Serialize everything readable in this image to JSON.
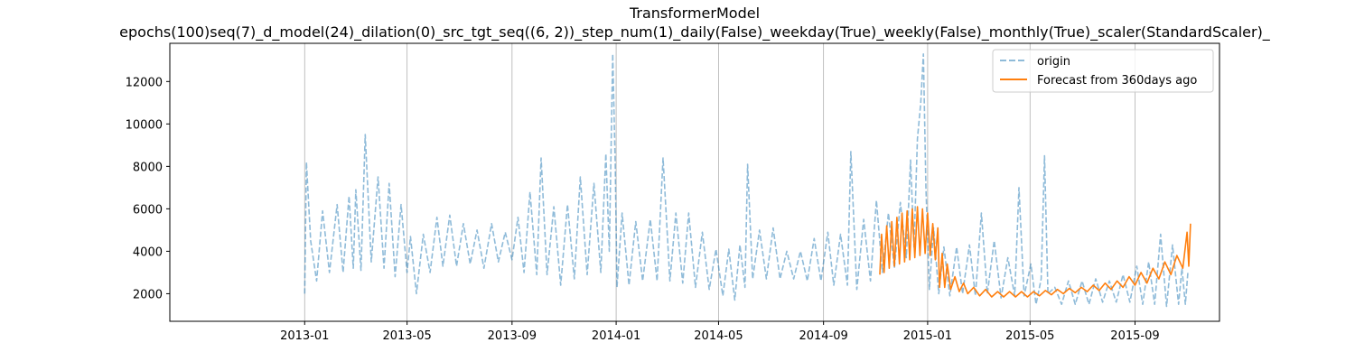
{
  "chart_data": {
    "type": "line",
    "title": "TransformerModel",
    "subtitle": "epochs(100)seq(7)_d_model(24)_dilation(0)_src_tgt_seq((6, 2))_step_num(1)_daily(False)_weekday(True)_weekly(False)_monthly(True)_scaler(StandardScaler)_",
    "xlabel": "",
    "ylabel": "",
    "x_range": [
      "2012-07-27",
      "2015-12-09"
    ],
    "ylim": [
      700,
      13800
    ],
    "x_ticks": [
      "2013-01",
      "2013-05",
      "2013-09",
      "2014-01",
      "2014-05",
      "2014-09",
      "2015-01",
      "2015-05",
      "2015-09"
    ],
    "y_ticks": [
      2000,
      4000,
      6000,
      8000,
      10000,
      12000
    ],
    "grid": "vertical lines at x ticks",
    "legend_position": "upper right",
    "series": [
      {
        "name": "origin",
        "style": "dashed",
        "color": "#1f77b4",
        "alpha": 0.5,
        "points": [
          [
            "2013-01-01",
            2000
          ],
          [
            "2013-01-03",
            8200
          ],
          [
            "2013-01-08",
            4500
          ],
          [
            "2013-01-15",
            2600
          ],
          [
            "2013-01-22",
            5900
          ],
          [
            "2013-01-30",
            3000
          ],
          [
            "2013-02-08",
            6200
          ],
          [
            "2013-02-15",
            3000
          ],
          [
            "2013-02-22",
            6600
          ],
          [
            "2013-02-27",
            3200
          ],
          [
            "2013-03-02",
            6900
          ],
          [
            "2013-03-08",
            3100
          ],
          [
            "2013-03-13",
            9500
          ],
          [
            "2013-03-20",
            3500
          ],
          [
            "2013-03-28",
            7500
          ],
          [
            "2013-04-04",
            3200
          ],
          [
            "2013-04-10",
            7200
          ],
          [
            "2013-04-17",
            2800
          ],
          [
            "2013-04-24",
            6200
          ],
          [
            "2013-05-01",
            3000
          ],
          [
            "2013-05-05",
            4700
          ],
          [
            "2013-05-12",
            2000
          ],
          [
            "2013-05-20",
            4800
          ],
          [
            "2013-05-28",
            3000
          ],
          [
            "2013-06-05",
            5600
          ],
          [
            "2013-06-12",
            3300
          ],
          [
            "2013-06-20",
            5700
          ],
          [
            "2013-06-28",
            3300
          ],
          [
            "2013-07-06",
            5300
          ],
          [
            "2013-07-14",
            3400
          ],
          [
            "2013-07-22",
            5000
          ],
          [
            "2013-07-30",
            3200
          ],
          [
            "2013-08-08",
            5300
          ],
          [
            "2013-08-16",
            3500
          ],
          [
            "2013-08-24",
            4900
          ],
          [
            "2013-09-01",
            3600
          ],
          [
            "2013-09-08",
            5600
          ],
          [
            "2013-09-15",
            3000
          ],
          [
            "2013-09-22",
            6800
          ],
          [
            "2013-09-30",
            2900
          ],
          [
            "2013-10-05",
            8400
          ],
          [
            "2013-10-12",
            2900
          ],
          [
            "2013-10-20",
            6100
          ],
          [
            "2013-10-28",
            2400
          ],
          [
            "2013-11-05",
            6200
          ],
          [
            "2013-11-13",
            2700
          ],
          [
            "2013-11-20",
            7500
          ],
          [
            "2013-11-28",
            2900
          ],
          [
            "2013-12-06",
            7200
          ],
          [
            "2013-12-14",
            3000
          ],
          [
            "2013-12-20",
            8600
          ],
          [
            "2013-12-24",
            4000
          ],
          [
            "2013-12-28",
            13300
          ],
          [
            "2013-12-31",
            8000
          ],
          [
            "2014-01-02",
            2300
          ],
          [
            "2014-01-08",
            5800
          ],
          [
            "2014-01-16",
            2400
          ],
          [
            "2014-01-24",
            5400
          ],
          [
            "2014-02-01",
            2600
          ],
          [
            "2014-02-10",
            5500
          ],
          [
            "2014-02-18",
            2600
          ],
          [
            "2014-02-25",
            8400
          ],
          [
            "2014-03-05",
            2600
          ],
          [
            "2014-03-12",
            5800
          ],
          [
            "2014-03-20",
            2500
          ],
          [
            "2014-03-27",
            5800
          ],
          [
            "2014-04-04",
            2300
          ],
          [
            "2014-04-12",
            4900
          ],
          [
            "2014-04-20",
            2200
          ],
          [
            "2014-04-28",
            4100
          ],
          [
            "2014-05-06",
            1900
          ],
          [
            "2014-05-13",
            4100
          ],
          [
            "2014-05-20",
            1700
          ],
          [
            "2014-05-26",
            4300
          ],
          [
            "2014-06-01",
            2300
          ],
          [
            "2014-06-04",
            8100
          ],
          [
            "2014-06-10",
            2700
          ],
          [
            "2014-06-18",
            5000
          ],
          [
            "2014-06-26",
            2700
          ],
          [
            "2014-07-04",
            5100
          ],
          [
            "2014-07-12",
            2700
          ],
          [
            "2014-07-20",
            4000
          ],
          [
            "2014-07-28",
            2700
          ],
          [
            "2014-08-05",
            4000
          ],
          [
            "2014-08-13",
            2600
          ],
          [
            "2014-08-21",
            4600
          ],
          [
            "2014-08-29",
            2600
          ],
          [
            "2014-09-06",
            4900
          ],
          [
            "2014-09-13",
            2400
          ],
          [
            "2014-09-21",
            4800
          ],
          [
            "2014-09-29",
            2400
          ],
          [
            "2014-10-03",
            8700
          ],
          [
            "2014-10-10",
            2200
          ],
          [
            "2014-10-18",
            5500
          ],
          [
            "2014-10-26",
            2600
          ],
          [
            "2014-11-02",
            6400
          ],
          [
            "2014-11-09",
            3000
          ],
          [
            "2014-11-16",
            5800
          ],
          [
            "2014-11-23",
            3200
          ],
          [
            "2014-11-30",
            6300
          ],
          [
            "2014-12-07",
            3700
          ],
          [
            "2014-12-12",
            8300
          ],
          [
            "2014-12-16",
            4200
          ],
          [
            "2014-12-20",
            9300
          ],
          [
            "2014-12-24",
            11000
          ],
          [
            "2014-12-27",
            13300
          ],
          [
            "2014-12-30",
            7000
          ],
          [
            "2015-01-03",
            2200
          ],
          [
            "2015-01-08",
            5100
          ],
          [
            "2015-01-14",
            2000
          ],
          [
            "2015-01-20",
            4200
          ],
          [
            "2015-01-27",
            1900
          ],
          [
            "2015-02-04",
            4200
          ],
          [
            "2015-02-11",
            2000
          ],
          [
            "2015-02-19",
            4300
          ],
          [
            "2015-02-26",
            1900
          ],
          [
            "2015-03-05",
            5800
          ],
          [
            "2015-03-12",
            2000
          ],
          [
            "2015-03-20",
            4500
          ],
          [
            "2015-03-28",
            1800
          ],
          [
            "2015-04-05",
            3700
          ],
          [
            "2015-04-13",
            1900
          ],
          [
            "2015-04-18",
            7000
          ],
          [
            "2015-04-24",
            1900
          ],
          [
            "2015-05-02",
            3400
          ],
          [
            "2015-05-08",
            1500
          ],
          [
            "2015-05-14",
            2700
          ],
          [
            "2015-05-18",
            8500
          ],
          [
            "2015-05-22",
            2000
          ],
          [
            "2015-05-30",
            2300
          ],
          [
            "2015-06-07",
            1500
          ],
          [
            "2015-06-15",
            2600
          ],
          [
            "2015-06-23",
            1500
          ],
          [
            "2015-07-01",
            2600
          ],
          [
            "2015-07-09",
            1500
          ],
          [
            "2015-07-17",
            2700
          ],
          [
            "2015-07-25",
            1600
          ],
          [
            "2015-08-02",
            2600
          ],
          [
            "2015-08-10",
            1600
          ],
          [
            "2015-08-18",
            2900
          ],
          [
            "2015-08-26",
            1600
          ],
          [
            "2015-09-03",
            3300
          ],
          [
            "2015-09-10",
            1500
          ],
          [
            "2015-09-17",
            3500
          ],
          [
            "2015-09-24",
            1500
          ],
          [
            "2015-10-01",
            4800
          ],
          [
            "2015-10-08",
            1400
          ],
          [
            "2015-10-15",
            4300
          ],
          [
            "2015-10-22",
            1500
          ],
          [
            "2015-10-26",
            3200
          ],
          [
            "2015-10-30",
            1500
          ],
          [
            "2015-11-02",
            3000
          ]
        ]
      },
      {
        "name": "Forecast from 360days ago",
        "style": "solid",
        "color": "#ff7f0e",
        "points": [
          [
            "2014-11-06",
            2900
          ],
          [
            "2014-11-08",
            4800
          ],
          [
            "2014-11-11",
            3000
          ],
          [
            "2014-11-14",
            5200
          ],
          [
            "2014-11-17",
            3200
          ],
          [
            "2014-11-20",
            5400
          ],
          [
            "2014-11-23",
            3300
          ],
          [
            "2014-11-26",
            5600
          ],
          [
            "2014-11-29",
            3400
          ],
          [
            "2014-12-02",
            5800
          ],
          [
            "2014-12-05",
            3500
          ],
          [
            "2014-12-08",
            5900
          ],
          [
            "2014-12-11",
            3600
          ],
          [
            "2014-12-14",
            6000
          ],
          [
            "2014-12-17",
            3700
          ],
          [
            "2014-12-20",
            6100
          ],
          [
            "2014-12-23",
            3800
          ],
          [
            "2014-12-26",
            6000
          ],
          [
            "2014-12-29",
            3900
          ],
          [
            "2015-01-01",
            5800
          ],
          [
            "2015-01-04",
            3800
          ],
          [
            "2015-01-07",
            5300
          ],
          [
            "2015-01-10",
            3600
          ],
          [
            "2015-01-13",
            5100
          ],
          [
            "2015-01-15",
            2300
          ],
          [
            "2015-01-18",
            3900
          ],
          [
            "2015-01-21",
            2300
          ],
          [
            "2015-01-24",
            3400
          ],
          [
            "2015-01-28",
            2200
          ],
          [
            "2015-02-02",
            2800
          ],
          [
            "2015-02-07",
            2100
          ],
          [
            "2015-02-12",
            2500
          ],
          [
            "2015-02-17",
            2000
          ],
          [
            "2015-02-24",
            2300
          ],
          [
            "2015-03-03",
            1900
          ],
          [
            "2015-03-10",
            2200
          ],
          [
            "2015-03-17",
            1850
          ],
          [
            "2015-03-24",
            2100
          ],
          [
            "2015-03-31",
            1850
          ],
          [
            "2015-04-07",
            2100
          ],
          [
            "2015-04-14",
            1850
          ],
          [
            "2015-04-21",
            2100
          ],
          [
            "2015-04-28",
            1850
          ],
          [
            "2015-05-05",
            2100
          ],
          [
            "2015-05-12",
            1900
          ],
          [
            "2015-05-19",
            2150
          ],
          [
            "2015-05-26",
            1950
          ],
          [
            "2015-06-02",
            2200
          ],
          [
            "2015-06-09",
            2000
          ],
          [
            "2015-06-16",
            2250
          ],
          [
            "2015-06-23",
            2050
          ],
          [
            "2015-06-30",
            2300
          ],
          [
            "2015-07-07",
            2100
          ],
          [
            "2015-07-14",
            2400
          ],
          [
            "2015-07-21",
            2150
          ],
          [
            "2015-07-28",
            2500
          ],
          [
            "2015-08-04",
            2200
          ],
          [
            "2015-08-11",
            2600
          ],
          [
            "2015-08-18",
            2300
          ],
          [
            "2015-08-25",
            2800
          ],
          [
            "2015-09-01",
            2400
          ],
          [
            "2015-09-08",
            3000
          ],
          [
            "2015-09-15",
            2500
          ],
          [
            "2015-09-22",
            3200
          ],
          [
            "2015-09-29",
            2700
          ],
          [
            "2015-10-06",
            3500
          ],
          [
            "2015-10-13",
            2900
          ],
          [
            "2015-10-20",
            3800
          ],
          [
            "2015-10-27",
            3200
          ],
          [
            "2015-11-01",
            4900
          ],
          [
            "2015-11-03",
            3300
          ],
          [
            "2015-11-05",
            5300
          ]
        ]
      }
    ]
  }
}
